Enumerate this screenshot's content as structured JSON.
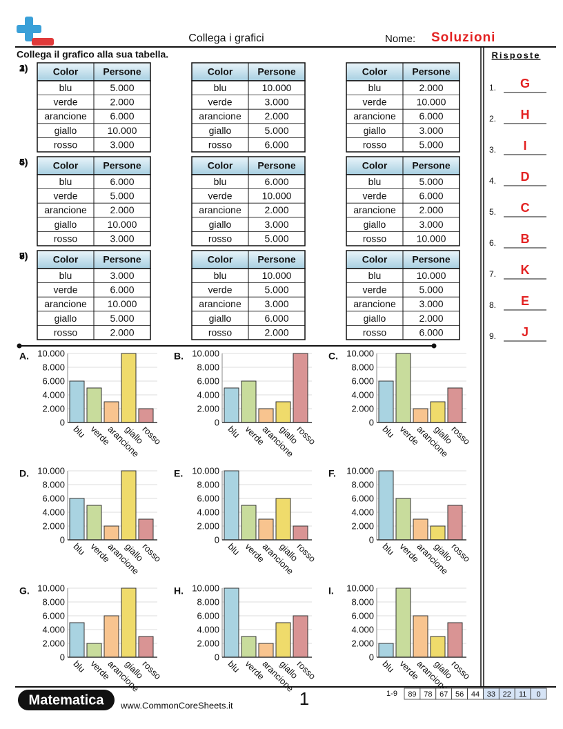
{
  "header": {
    "title": "Collega i grafici",
    "name_label": "Nome:",
    "name_value": "Soluzioni"
  },
  "instructions": "Collega il grafico alla sua tabella.",
  "tables": [
    {
      "number": "1)",
      "columns": [
        "Color",
        "Persone"
      ],
      "rows": [
        [
          "blu",
          "5.000"
        ],
        [
          "verde",
          "2.000"
        ],
        [
          "arancione",
          "6.000"
        ],
        [
          "giallo",
          "10.000"
        ],
        [
          "rosso",
          "3.000"
        ]
      ]
    },
    {
      "number": "2)",
      "columns": [
        "Color",
        "Persone"
      ],
      "rows": [
        [
          "blu",
          "10.000"
        ],
        [
          "verde",
          "3.000"
        ],
        [
          "arancione",
          "2.000"
        ],
        [
          "giallo",
          "5.000"
        ],
        [
          "rosso",
          "6.000"
        ]
      ]
    },
    {
      "number": "3)",
      "columns": [
        "Color",
        "Persone"
      ],
      "rows": [
        [
          "blu",
          "2.000"
        ],
        [
          "verde",
          "10.000"
        ],
        [
          "arancione",
          "6.000"
        ],
        [
          "giallo",
          "3.000"
        ],
        [
          "rosso",
          "5.000"
        ]
      ]
    },
    {
      "number": "4)",
      "columns": [
        "Color",
        "Persone"
      ],
      "rows": [
        [
          "blu",
          "6.000"
        ],
        [
          "verde",
          "5.000"
        ],
        [
          "arancione",
          "2.000"
        ],
        [
          "giallo",
          "10.000"
        ],
        [
          "rosso",
          "3.000"
        ]
      ]
    },
    {
      "number": "5)",
      "columns": [
        "Color",
        "Persone"
      ],
      "rows": [
        [
          "blu",
          "6.000"
        ],
        [
          "verde",
          "10.000"
        ],
        [
          "arancione",
          "2.000"
        ],
        [
          "giallo",
          "3.000"
        ],
        [
          "rosso",
          "5.000"
        ]
      ]
    },
    {
      "number": "6)",
      "columns": [
        "Color",
        "Persone"
      ],
      "rows": [
        [
          "blu",
          "5.000"
        ],
        [
          "verde",
          "6.000"
        ],
        [
          "arancione",
          "2.000"
        ],
        [
          "giallo",
          "3.000"
        ],
        [
          "rosso",
          "10.000"
        ]
      ]
    },
    {
      "number": "7)",
      "columns": [
        "Color",
        "Persone"
      ],
      "rows": [
        [
          "blu",
          "3.000"
        ],
        [
          "verde",
          "6.000"
        ],
        [
          "arancione",
          "10.000"
        ],
        [
          "giallo",
          "5.000"
        ],
        [
          "rosso",
          "2.000"
        ]
      ]
    },
    {
      "number": "8)",
      "columns": [
        "Color",
        "Persone"
      ],
      "rows": [
        [
          "blu",
          "10.000"
        ],
        [
          "verde",
          "5.000"
        ],
        [
          "arancione",
          "3.000"
        ],
        [
          "giallo",
          "6.000"
        ],
        [
          "rosso",
          "2.000"
        ]
      ]
    },
    {
      "number": "9)",
      "columns": [
        "Color",
        "Persone"
      ],
      "rows": [
        [
          "blu",
          "10.000"
        ],
        [
          "verde",
          "5.000"
        ],
        [
          "arancione",
          "3.000"
        ],
        [
          "giallo",
          "2.000"
        ],
        [
          "rosso",
          "6.000"
        ]
      ]
    }
  ],
  "graphs": [
    {
      "label": "A.",
      "type": "bar",
      "categories": [
        "blu",
        "verde",
        "arancione",
        "giallo",
        "rosso"
      ],
      "values": [
        6000,
        5000,
        3000,
        10000,
        2000
      ],
      "colors": [
        "#a9d3e1",
        "#c8dc9c",
        "#f8c48f",
        "#efdb6b",
        "#d99494"
      ],
      "ylim": [
        0,
        10000
      ],
      "yticks": [
        0,
        {
          "value": 2000,
          "label": "2.000"
        },
        {
          "value": 4000,
          "label": "4.000"
        },
        {
          "value": 6000,
          "label": "6.000"
        },
        {
          "value": 8000,
          "label": "8.000"
        },
        {
          "value": 10000,
          "label": "10.000"
        }
      ],
      "grid": true
    },
    {
      "label": "B.",
      "type": "bar",
      "categories": [
        "blu",
        "verde",
        "arancione",
        "giallo",
        "rosso"
      ],
      "values": [
        5000,
        6000,
        2000,
        3000,
        10000
      ],
      "colors": [
        "#a9d3e1",
        "#c8dc9c",
        "#f8c48f",
        "#efdb6b",
        "#d99494"
      ],
      "ylim": [
        0,
        10000
      ],
      "yticks": [
        0,
        {
          "value": 2000,
          "label": "2.000"
        },
        {
          "value": 4000,
          "label": "4.000"
        },
        {
          "value": 6000,
          "label": "6.000"
        },
        {
          "value": 8000,
          "label": "8.000"
        },
        {
          "value": 10000,
          "label": "10.000"
        }
      ],
      "grid": true
    },
    {
      "label": "C.",
      "type": "bar",
      "categories": [
        "blu",
        "verde",
        "arancione",
        "giallo",
        "rosso"
      ],
      "values": [
        6000,
        10000,
        2000,
        3000,
        5000
      ],
      "colors": [
        "#a9d3e1",
        "#c8dc9c",
        "#f8c48f",
        "#efdb6b",
        "#d99494"
      ],
      "ylim": [
        0,
        10000
      ],
      "yticks": [
        0,
        {
          "value": 2000,
          "label": "2.000"
        },
        {
          "value": 4000,
          "label": "4.000"
        },
        {
          "value": 6000,
          "label": "6.000"
        },
        {
          "value": 8000,
          "label": "8.000"
        },
        {
          "value": 10000,
          "label": "10.000"
        }
      ],
      "grid": true
    },
    {
      "label": "D.",
      "type": "bar",
      "categories": [
        "blu",
        "verde",
        "arancione",
        "giallo",
        "rosso"
      ],
      "values": [
        6000,
        5000,
        2000,
        10000,
        3000
      ],
      "colors": [
        "#a9d3e1",
        "#c8dc9c",
        "#f8c48f",
        "#efdb6b",
        "#d99494"
      ],
      "ylim": [
        0,
        10000
      ],
      "yticks": [
        0,
        {
          "value": 2000,
          "label": "2.000"
        },
        {
          "value": 4000,
          "label": "4.000"
        },
        {
          "value": 6000,
          "label": "6.000"
        },
        {
          "value": 8000,
          "label": "8.000"
        },
        {
          "value": 10000,
          "label": "10.000"
        }
      ],
      "grid": true
    },
    {
      "label": "E.",
      "type": "bar",
      "categories": [
        "blu",
        "verde",
        "arancione",
        "giallo",
        "rosso"
      ],
      "values": [
        10000,
        5000,
        3000,
        6000,
        2000
      ],
      "colors": [
        "#a9d3e1",
        "#c8dc9c",
        "#f8c48f",
        "#efdb6b",
        "#d99494"
      ],
      "ylim": [
        0,
        10000
      ],
      "yticks": [
        0,
        {
          "value": 2000,
          "label": "2.000"
        },
        {
          "value": 4000,
          "label": "4.000"
        },
        {
          "value": 6000,
          "label": "6.000"
        },
        {
          "value": 8000,
          "label": "8.000"
        },
        {
          "value": 10000,
          "label": "10.000"
        }
      ],
      "grid": true
    },
    {
      "label": "F.",
      "type": "bar",
      "categories": [
        "blu",
        "verde",
        "arancione",
        "giallo",
        "rosso"
      ],
      "values": [
        10000,
        6000,
        3000,
        2000,
        5000
      ],
      "colors": [
        "#a9d3e1",
        "#c8dc9c",
        "#f8c48f",
        "#efdb6b",
        "#d99494"
      ],
      "ylim": [
        0,
        10000
      ],
      "yticks": [
        0,
        {
          "value": 2000,
          "label": "2.000"
        },
        {
          "value": 4000,
          "label": "4.000"
        },
        {
          "value": 6000,
          "label": "6.000"
        },
        {
          "value": 8000,
          "label": "8.000"
        },
        {
          "value": 10000,
          "label": "10.000"
        }
      ],
      "grid": true
    },
    {
      "label": "G.",
      "type": "bar",
      "categories": [
        "blu",
        "verde",
        "arancione",
        "giallo",
        "rosso"
      ],
      "values": [
        5000,
        2000,
        6000,
        10000,
        3000
      ],
      "colors": [
        "#a9d3e1",
        "#c8dc9c",
        "#f8c48f",
        "#efdb6b",
        "#d99494"
      ],
      "ylim": [
        0,
        10000
      ],
      "yticks": [
        0,
        {
          "value": 2000,
          "label": "2.000"
        },
        {
          "value": 4000,
          "label": "4.000"
        },
        {
          "value": 6000,
          "label": "6.000"
        },
        {
          "value": 8000,
          "label": "8.000"
        },
        {
          "value": 10000,
          "label": "10.000"
        }
      ],
      "grid": true
    },
    {
      "label": "H.",
      "type": "bar",
      "categories": [
        "blu",
        "verde",
        "arancione",
        "giallo",
        "rosso"
      ],
      "values": [
        10000,
        3000,
        2000,
        5000,
        6000
      ],
      "colors": [
        "#a9d3e1",
        "#c8dc9c",
        "#f8c48f",
        "#efdb6b",
        "#d99494"
      ],
      "ylim": [
        0,
        10000
      ],
      "yticks": [
        0,
        {
          "value": 2000,
          "label": "2.000"
        },
        {
          "value": 4000,
          "label": "4.000"
        },
        {
          "value": 6000,
          "label": "6.000"
        },
        {
          "value": 8000,
          "label": "8.000"
        },
        {
          "value": 10000,
          "label": "10.000"
        }
      ],
      "grid": true
    },
    {
      "label": "I.",
      "type": "bar",
      "categories": [
        "blu",
        "verde",
        "arancione",
        "giallo",
        "rosso"
      ],
      "values": [
        2000,
        10000,
        6000,
        3000,
        5000
      ],
      "colors": [
        "#a9d3e1",
        "#c8dc9c",
        "#f8c48f",
        "#efdb6b",
        "#d99494"
      ],
      "ylim": [
        0,
        10000
      ],
      "yticks": [
        0,
        {
          "value": 2000,
          "label": "2.000"
        },
        {
          "value": 4000,
          "label": "4.000"
        },
        {
          "value": 6000,
          "label": "6.000"
        },
        {
          "value": 8000,
          "label": "8.000"
        },
        {
          "value": 10000,
          "label": "10.000"
        }
      ],
      "grid": true
    }
  ],
  "answers": {
    "title": "Risposte",
    "items": [
      {
        "number": "1.",
        "letter": "G"
      },
      {
        "number": "2.",
        "letter": "H"
      },
      {
        "number": "3.",
        "letter": "I"
      },
      {
        "number": "4.",
        "letter": "D"
      },
      {
        "number": "5.",
        "letter": "C"
      },
      {
        "number": "6.",
        "letter": "B"
      },
      {
        "number": "7.",
        "letter": "K"
      },
      {
        "number": "8.",
        "letter": "E"
      },
      {
        "number": "9.",
        "letter": "J"
      }
    ]
  },
  "footer": {
    "brand": "Matematica",
    "website": "www.CommonCoreSheets.it",
    "page": 1,
    "score_range": "1-9",
    "scores": [
      89,
      78,
      67,
      56,
      44,
      33,
      22,
      11,
      0
    ]
  }
}
